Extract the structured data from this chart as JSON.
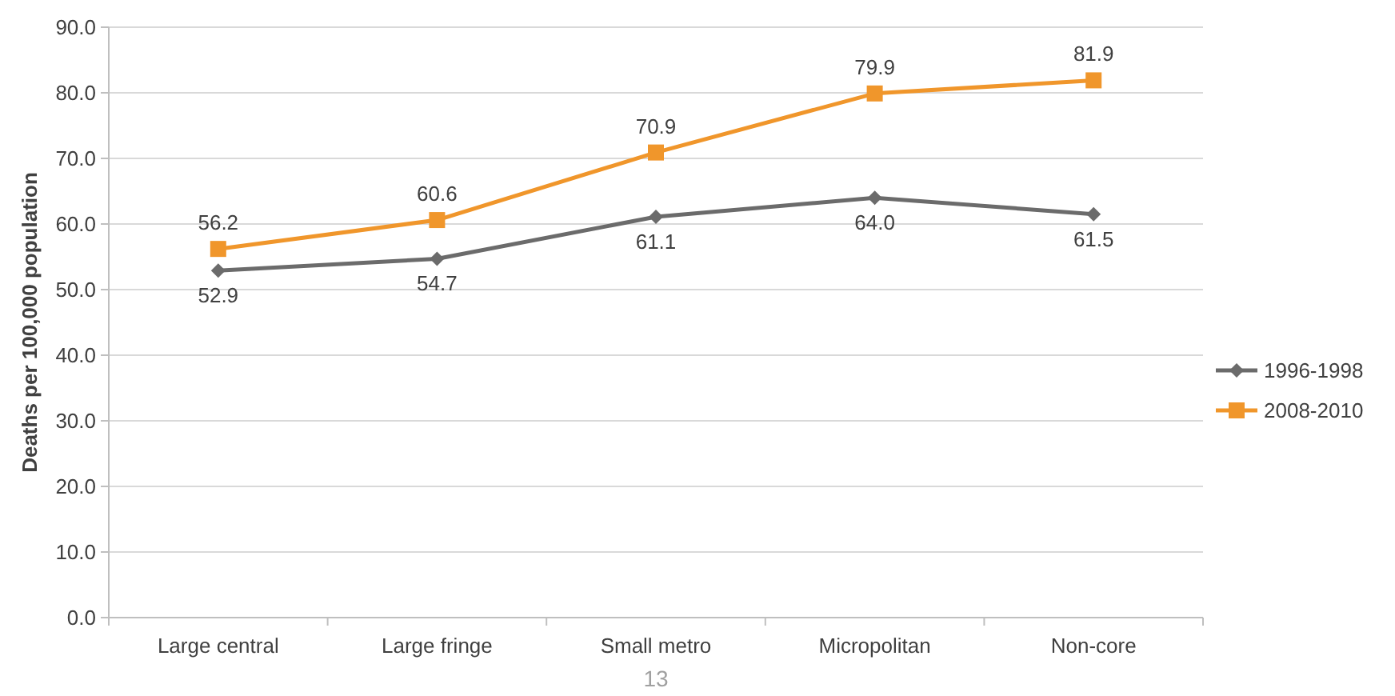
{
  "chart_data": {
    "type": "line",
    "ylabel": "Deaths per 100,000 population",
    "categories": [
      "Large central",
      "Large fringe",
      "Small metro",
      "Micropolitan",
      "Non-core"
    ],
    "series": [
      {
        "name": "1996-1998",
        "color": "#6b6b6b",
        "marker": "diamond",
        "values": [
          52.9,
          54.7,
          61.1,
          64.0,
          61.5
        ],
        "value_labels": [
          "52.9",
          "54.7",
          "61.1",
          "64.0",
          "61.5"
        ]
      },
      {
        "name": "2008-2010",
        "color": "#f0962b",
        "marker": "square",
        "values": [
          56.2,
          60.6,
          70.9,
          79.9,
          81.9
        ],
        "value_labels": [
          "56.2",
          "60.6",
          "70.9",
          "79.9",
          "81.9"
        ]
      }
    ],
    "ylim": [
      0,
      90
    ],
    "yticks": [
      {
        "value": 0,
        "label": "0.0"
      },
      {
        "value": 10,
        "label": "10.0"
      },
      {
        "value": 20,
        "label": "20.0"
      },
      {
        "value": 30,
        "label": "30.0"
      },
      {
        "value": 40,
        "label": "40.0"
      },
      {
        "value": 50,
        "label": "50.0"
      },
      {
        "value": 60,
        "label": "60.0"
      },
      {
        "value": 70,
        "label": "70.0"
      },
      {
        "value": 80,
        "label": "80.0"
      },
      {
        "value": 90,
        "label": "90.0"
      }
    ],
    "grid": "y",
    "legend": "right",
    "line_style": "solid",
    "annotations": [
      "13"
    ]
  }
}
